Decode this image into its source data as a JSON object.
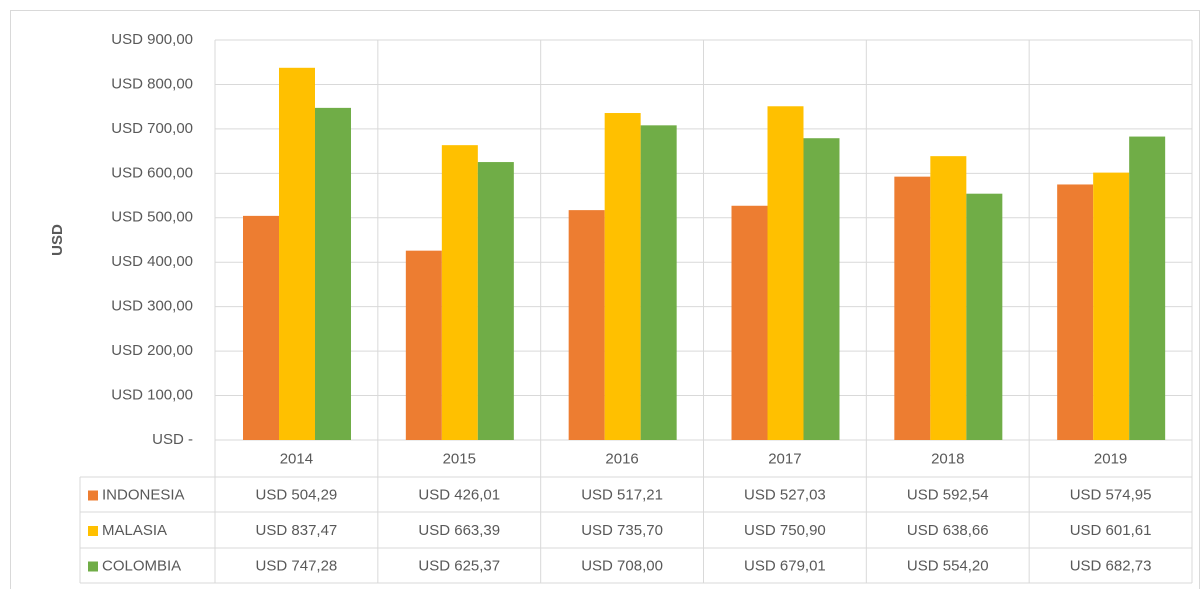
{
  "chart_data": {
    "type": "bar",
    "y_label": "USD",
    "categories": [
      "2014",
      "2015",
      "2016",
      "2017",
      "2018",
      "2019"
    ],
    "series": [
      {
        "name": "INDONESIA",
        "color": "#ed7d31",
        "values": [
          504.29,
          426.01,
          517.21,
          527.03,
          592.54,
          574.95
        ],
        "value_labels": [
          "USD 504,29",
          "USD 426,01",
          "USD 517,21",
          "USD 527,03",
          "USD 592,54",
          "USD 574,95"
        ]
      },
      {
        "name": "MALASIA",
        "color": "#ffc000",
        "values": [
          837.47,
          663.39,
          735.7,
          750.9,
          638.66,
          601.61
        ],
        "value_labels": [
          "USD 837,47",
          "USD 663,39",
          "USD 735,70",
          "USD 750,90",
          "USD 638,66",
          "USD 601,61"
        ]
      },
      {
        "name": "COLOMBIA",
        "color": "#70ad47",
        "values": [
          747.28,
          625.37,
          708.0,
          679.01,
          554.2,
          682.73
        ],
        "value_labels": [
          "USD 747,28",
          "USD 625,37",
          "USD 708,00",
          "USD 679,01",
          "USD 554,20",
          "USD 682,73"
        ]
      }
    ],
    "ylim": [
      0,
      900
    ],
    "yticks": [
      {
        "value": 0,
        "label": "USD -"
      },
      {
        "value": 100,
        "label": "USD 100,00"
      },
      {
        "value": 200,
        "label": "USD 200,00"
      },
      {
        "value": 300,
        "label": "USD 300,00"
      },
      {
        "value": 400,
        "label": "USD 400,00"
      },
      {
        "value": 500,
        "label": "USD 500,00"
      },
      {
        "value": 600,
        "label": "USD 600,00"
      },
      {
        "value": 700,
        "label": "USD 700,00"
      },
      {
        "value": 800,
        "label": "USD 800,00"
      },
      {
        "value": 900,
        "label": "USD 900,00"
      }
    ],
    "grid": true
  }
}
